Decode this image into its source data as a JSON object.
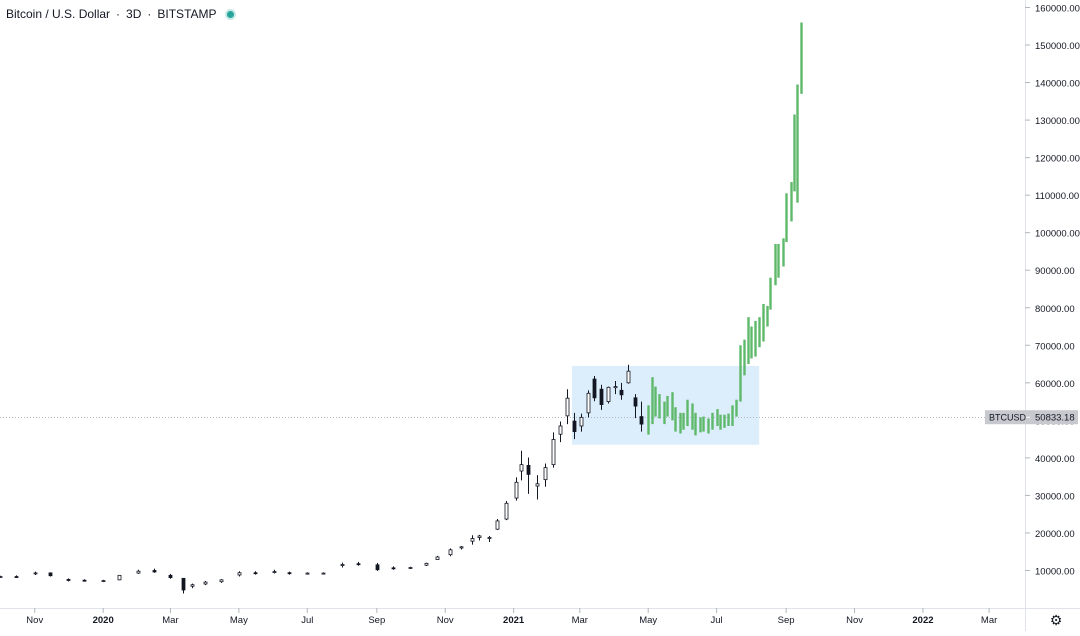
{
  "header": {
    "symbol": "Bitcoin / U.S. Dollar",
    "interval": "3D",
    "exchange": "BITSTAMP",
    "status_color": "#26a69a"
  },
  "price_label": {
    "symbol": "BTCUSD",
    "value": "50833.18",
    "y": 50833.18
  },
  "icons": {
    "settings": "gear-icon"
  },
  "colors": {
    "actual_bars": "#131722",
    "projection_bars": "#5fb96a",
    "highlight_box": "#d6eafb",
    "price_line": "#b2b5be"
  },
  "chart_data": {
    "type": "bar",
    "title": "Bitcoin / U.S. Dollar · 3D · BITSTAMP",
    "ylim": [
      0,
      162000
    ],
    "y_ticks": [
      "10000.00",
      "20000.00",
      "30000.00",
      "40000.00",
      "50000.00",
      "60000.00",
      "70000.00",
      "80000.00",
      "90000.00",
      "100000.00",
      "110000.00",
      "120000.00",
      "130000.00",
      "140000.00",
      "150000.00",
      "160000.00"
    ],
    "y_tick_values": [
      10000,
      20000,
      30000,
      40000,
      50000,
      60000,
      70000,
      80000,
      90000,
      100000,
      110000,
      120000,
      130000,
      140000,
      150000,
      160000
    ],
    "x_ticks": [
      {
        "label": "Nov",
        "date": "2019-11-01"
      },
      {
        "label": "2020",
        "date": "2020-01-01"
      },
      {
        "label": "Mar",
        "date": "2020-03-01"
      },
      {
        "label": "May",
        "date": "2020-05-01"
      },
      {
        "label": "Jul",
        "date": "2020-07-01"
      },
      {
        "label": "Sep",
        "date": "2020-09-01"
      },
      {
        "label": "Nov",
        "date": "2020-11-01"
      },
      {
        "label": "2021",
        "date": "2021-01-01"
      },
      {
        "label": "Mar",
        "date": "2021-03-01"
      },
      {
        "label": "May",
        "date": "2021-05-01"
      },
      {
        "label": "Jul",
        "date": "2021-07-01"
      },
      {
        "label": "Sep",
        "date": "2021-09-01"
      },
      {
        "label": "Nov",
        "date": "2021-11-01"
      },
      {
        "label": "2022",
        "date": "2022-01-01"
      },
      {
        "label": "Mar",
        "date": "2022-03-01"
      }
    ],
    "xlim": [
      "2019-10-01",
      "2022-04-02"
    ],
    "highlight_range": {
      "x": [
        "2021-02-22",
        "2021-08-08"
      ],
      "y": [
        43500,
        64500
      ]
    },
    "series": [
      {
        "name": "BTCUSD",
        "style": "candlestick",
        "points": [
          [
            "2019-10-01",
            8300,
            8600,
            8050,
            8380
          ],
          [
            "2019-10-15",
            8380,
            8700,
            8100,
            8320
          ],
          [
            "2019-11-01",
            9200,
            9700,
            8800,
            9350
          ],
          [
            "2019-11-15",
            9350,
            9500,
            8400,
            8600
          ],
          [
            "2019-12-01",
            7600,
            7900,
            7100,
            7400
          ],
          [
            "2019-12-15",
            7400,
            7650,
            7050,
            7200
          ],
          [
            "2020-01-01",
            7200,
            7500,
            6900,
            7300
          ],
          [
            "2020-01-15",
            7500,
            8800,
            7400,
            8700
          ],
          [
            "2020-02-01",
            9300,
            10200,
            9100,
            9800
          ],
          [
            "2020-02-15",
            10000,
            10500,
            9400,
            9600
          ],
          [
            "2020-03-01",
            8700,
            9100,
            7800,
            8100
          ],
          [
            "2020-03-12",
            7900,
            8000,
            3850,
            4800
          ],
          [
            "2020-03-20",
            5800,
            6500,
            5300,
            6200
          ],
          [
            "2020-04-01",
            6400,
            7200,
            6100,
            6900
          ],
          [
            "2020-04-15",
            7000,
            7700,
            6700,
            7500
          ],
          [
            "2020-05-01",
            8800,
            9800,
            8400,
            9400
          ],
          [
            "2020-05-15",
            9400,
            9800,
            8900,
            9300
          ],
          [
            "2020-06-01",
            9500,
            10200,
            9200,
            9700
          ],
          [
            "2020-06-15",
            9400,
            9700,
            8900,
            9300
          ],
          [
            "2020-07-01",
            9200,
            9500,
            8900,
            9300
          ],
          [
            "2020-07-15",
            9200,
            9500,
            9100,
            9300
          ],
          [
            "2020-08-01",
            11300,
            12100,
            10800,
            11600
          ],
          [
            "2020-08-15",
            11800,
            12300,
            11300,
            11700
          ],
          [
            "2020-09-01",
            11500,
            12000,
            9900,
            10200
          ],
          [
            "2020-09-15",
            10700,
            11100,
            10200,
            10600
          ],
          [
            "2020-10-01",
            10600,
            11000,
            10400,
            10800
          ],
          [
            "2020-10-15",
            11400,
            12100,
            11200,
            11900
          ],
          [
            "2020-10-25",
            12900,
            13900,
            12800,
            13600
          ],
          [
            "2020-11-05",
            14200,
            15900,
            13800,
            15500
          ],
          [
            "2020-11-15",
            16000,
            16500,
            15600,
            16300
          ],
          [
            "2020-11-25",
            17800,
            19400,
            16900,
            18500
          ],
          [
            "2020-12-01",
            18800,
            19500,
            18000,
            19200
          ],
          [
            "2020-12-10",
            18500,
            19200,
            17600,
            18800
          ],
          [
            "2020-12-17",
            21000,
            23700,
            20800,
            23200
          ],
          [
            "2020-12-25",
            23700,
            28500,
            23400,
            27900
          ],
          [
            "2021-01-03",
            29300,
            34800,
            28600,
            33500
          ],
          [
            "2021-01-08",
            36500,
            41900,
            34000,
            38200
          ],
          [
            "2021-01-14",
            38000,
            40100,
            30400,
            35600
          ],
          [
            "2021-01-22",
            32500,
            35400,
            28900,
            33100
          ],
          [
            "2021-01-29",
            34200,
            38500,
            32300,
            37400
          ],
          [
            "2021-02-05",
            38200,
            46800,
            37400,
            44900
          ],
          [
            "2021-02-11",
            46300,
            49700,
            44200,
            48500
          ],
          [
            "2021-02-18",
            51200,
            58300,
            49000,
            55900
          ],
          [
            "2021-02-24",
            49800,
            52000,
            45000,
            47000
          ],
          [
            "2021-03-02",
            48500,
            51800,
            47000,
            50800
          ],
          [
            "2021-03-08",
            52000,
            58000,
            50800,
            57200
          ],
          [
            "2021-03-14",
            61000,
            61800,
            55100,
            56000
          ],
          [
            "2021-03-20",
            58300,
            59500,
            52800,
            54200
          ],
          [
            "2021-03-26",
            55000,
            59000,
            54500,
            58800
          ],
          [
            "2021-04-01",
            58700,
            60500,
            57000,
            59000
          ],
          [
            "2021-04-07",
            58000,
            60000,
            55500,
            56800
          ],
          [
            "2021-04-13",
            60000,
            64800,
            59800,
            63100
          ],
          [
            "2021-04-19",
            56000,
            57000,
            50600,
            53800
          ],
          [
            "2021-04-25",
            51000,
            55000,
            47000,
            49000
          ]
        ]
      },
      {
        "name": "Projection",
        "style": "range",
        "points": [
          [
            "2021-05-01",
            46200,
            54000
          ],
          [
            "2021-05-04",
            49000,
            61500
          ],
          [
            "2021-05-07",
            51000,
            59000
          ],
          [
            "2021-05-11",
            50500,
            57000
          ],
          [
            "2021-05-15",
            49000,
            55000
          ],
          [
            "2021-05-18",
            51000,
            56500
          ],
          [
            "2021-05-22",
            50000,
            57500
          ],
          [
            "2021-05-25",
            47000,
            53500
          ],
          [
            "2021-05-29",
            46500,
            52000
          ],
          [
            "2021-06-01",
            47500,
            52000
          ],
          [
            "2021-06-05",
            48500,
            55500
          ],
          [
            "2021-06-09",
            47500,
            54500
          ],
          [
            "2021-06-12",
            46000,
            52000
          ],
          [
            "2021-06-16",
            46800,
            50800
          ],
          [
            "2021-06-19",
            47000,
            51000
          ],
          [
            "2021-06-23",
            46500,
            50500
          ],
          [
            "2021-06-27",
            47500,
            52000
          ],
          [
            "2021-07-01",
            48500,
            53000
          ],
          [
            "2021-07-04",
            47500,
            51500
          ],
          [
            "2021-07-08",
            48000,
            51500
          ],
          [
            "2021-07-11",
            48500,
            51800
          ],
          [
            "2021-07-15",
            48500,
            54000
          ],
          [
            "2021-07-18",
            51000,
            55500
          ],
          [
            "2021-07-22",
            55000,
            70000
          ],
          [
            "2021-07-25",
            62000,
            71500
          ],
          [
            "2021-07-29",
            65000,
            77500
          ],
          [
            "2021-08-01",
            66500,
            75000
          ],
          [
            "2021-08-04",
            67000,
            76500
          ],
          [
            "2021-08-08",
            69500,
            77500
          ],
          [
            "2021-08-11",
            71000,
            81000
          ],
          [
            "2021-08-15",
            75000,
            80500
          ],
          [
            "2021-08-18",
            79500,
            88000
          ],
          [
            "2021-08-22",
            86000,
            97000
          ],
          [
            "2021-08-25",
            88000,
            97000
          ],
          [
            "2021-08-29",
            91000,
            98500
          ],
          [
            "2021-09-01",
            97500,
            110500
          ],
          [
            "2021-09-05",
            103000,
            113500
          ],
          [
            "2021-09-08",
            111000,
            131500
          ],
          [
            "2021-09-11",
            108000,
            139500
          ],
          [
            "2021-09-14",
            137000,
            156000
          ]
        ]
      }
    ]
  }
}
